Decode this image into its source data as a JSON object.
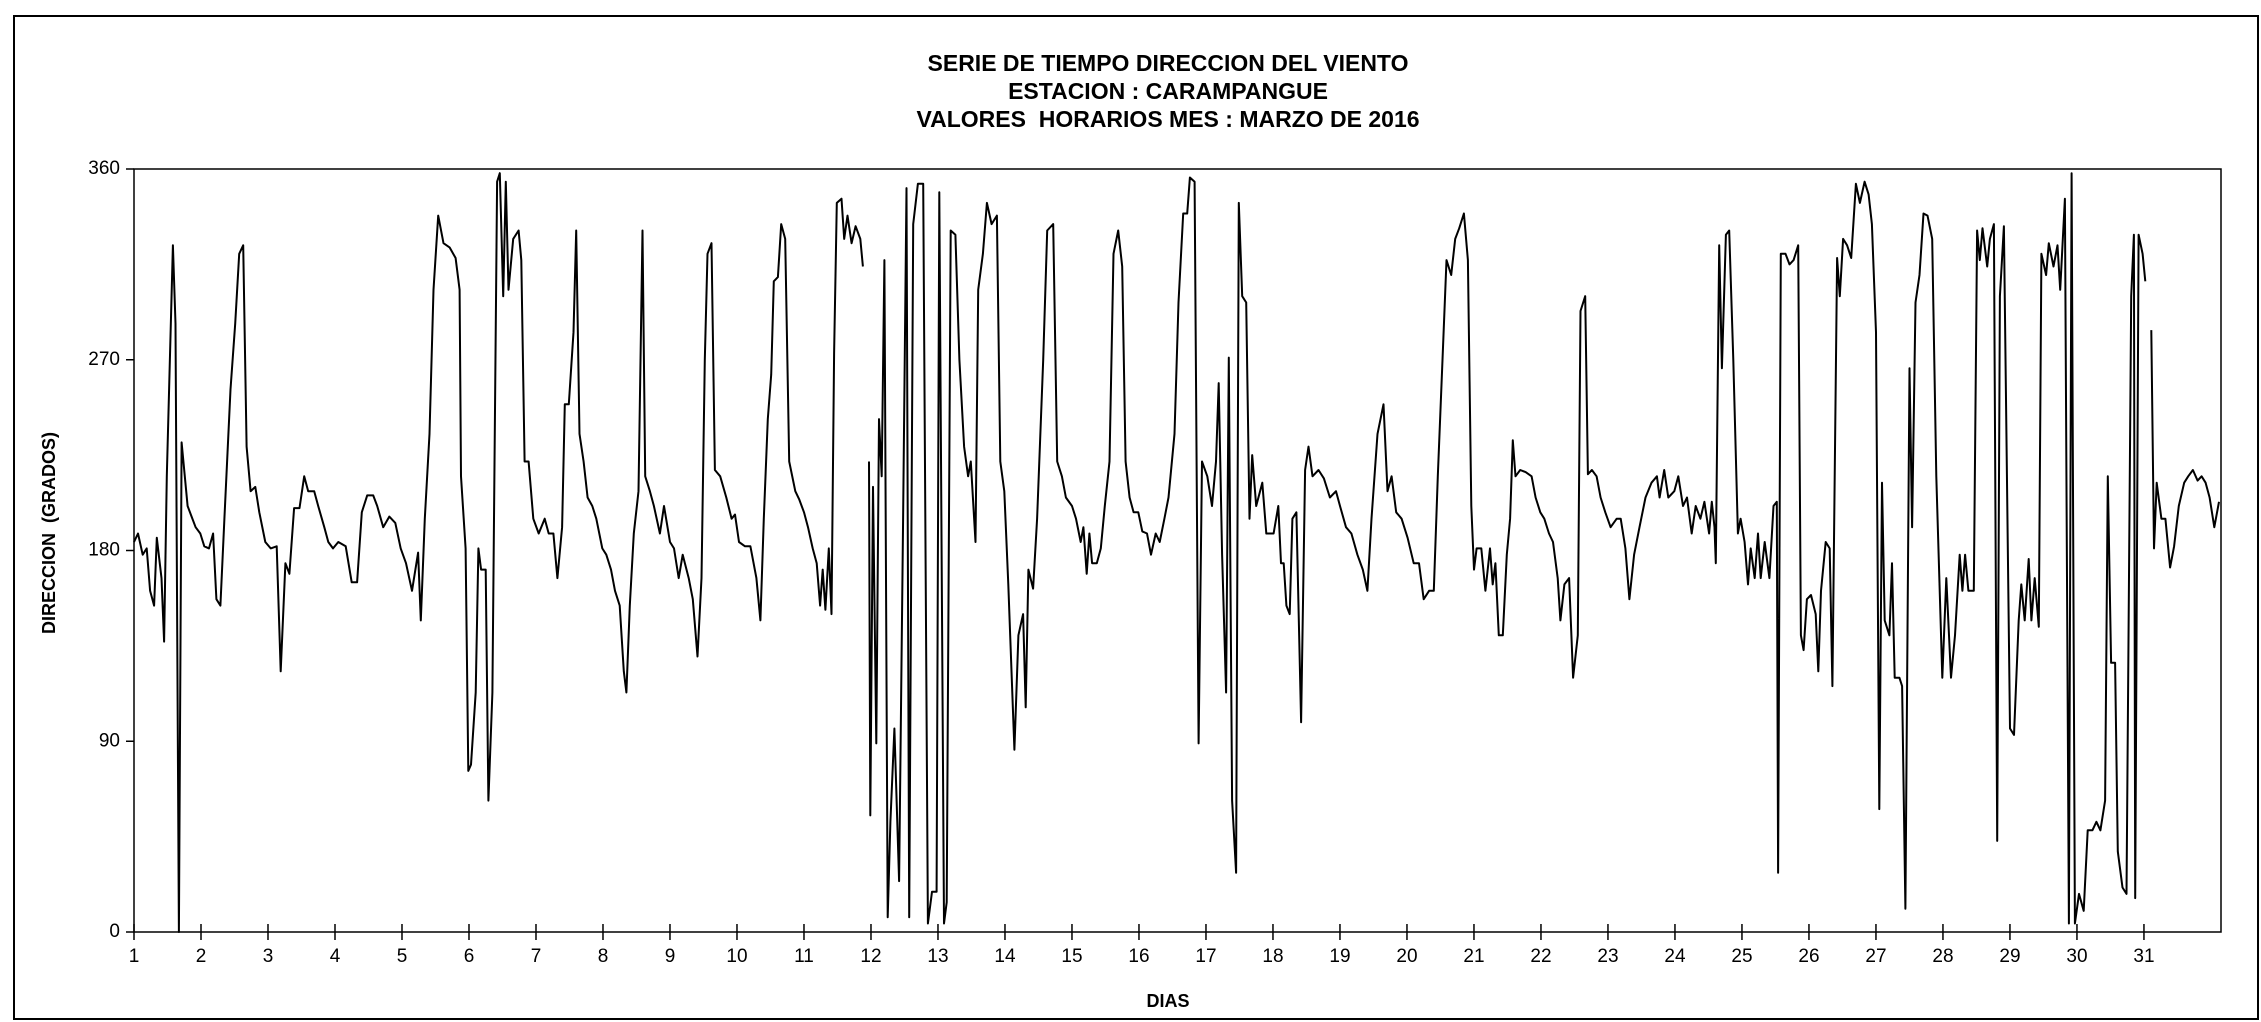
{
  "chart_data": {
    "type": "line",
    "title": [
      "SERIE DE TIEMPO DIRECCION DEL VIENTO",
      "ESTACION : CARAMPANGUE",
      "VALORES  HORARIOS MES : MARZO DE 2016"
    ],
    "xlabel": "DIAS",
    "ylabel": "DIRECCION  (GRADOS)",
    "color": "#000000",
    "xlim": [
      1,
      32.15
    ],
    "ylim": [
      0,
      360
    ],
    "xticks": [
      1,
      2,
      3,
      4,
      5,
      6,
      7,
      8,
      9,
      10,
      11,
      12,
      13,
      14,
      15,
      16,
      17,
      18,
      19,
      20,
      21,
      22,
      23,
      24,
      25,
      26,
      27,
      28,
      29,
      30,
      31
    ],
    "yticks": [
      0,
      90,
      180,
      270,
      360
    ],
    "x": [
      1.0,
      1.06,
      1.13,
      1.19,
      1.24,
      1.3,
      1.34,
      1.41,
      1.45,
      1.49,
      1.58,
      1.62,
      1.67,
      1.71,
      1.8,
      1.86,
      1.92,
      1.99,
      2.05,
      2.12,
      2.18,
      2.23,
      2.29,
      2.35,
      2.44,
      2.51,
      2.57,
      2.63,
      2.68,
      2.74,
      2.81,
      2.87,
      2.96,
      3.04,
      3.13,
      3.19,
      3.26,
      3.32,
      3.39,
      3.47,
      3.54,
      3.6,
      3.69,
      3.75,
      3.84,
      3.9,
      3.97,
      4.05,
      4.16,
      4.25,
      4.33,
      4.4,
      4.48,
      4.57,
      4.63,
      4.72,
      4.81,
      4.9,
      4.98,
      5.06,
      5.15,
      5.24,
      5.28,
      5.34,
      5.41,
      5.47,
      5.54,
      5.62,
      5.71,
      5.8,
      5.86,
      5.88,
      5.95,
      5.99,
      6.03,
      6.1,
      6.14,
      6.18,
      6.25,
      6.29,
      6.35,
      6.42,
      6.46,
      6.51,
      6.55,
      6.59,
      6.66,
      6.74,
      6.78,
      6.83,
      6.89,
      6.96,
      7.04,
      7.13,
      7.19,
      7.26,
      7.32,
      7.39,
      7.43,
      7.49,
      7.56,
      7.6,
      7.65,
      7.71,
      7.77,
      7.84,
      7.9,
      7.99,
      8.05,
      8.12,
      8.18,
      8.25,
      8.31,
      8.35,
      8.4,
      8.46,
      8.53,
      8.59,
      8.63,
      8.7,
      8.76,
      8.85,
      8.91,
      9.0,
      9.06,
      9.13,
      9.19,
      9.28,
      9.34,
      9.41,
      9.47,
      9.52,
      9.56,
      9.62,
      9.67,
      9.75,
      9.84,
      9.92,
      9.97,
      10.03,
      10.12,
      10.2,
      10.29,
      10.35,
      10.4,
      10.46,
      10.51,
      10.55,
      10.61,
      10.66,
      10.72,
      10.78,
      10.87,
      10.93,
      11.0,
      11.06,
      11.13,
      11.19,
      11.24,
      11.28,
      11.32,
      11.37,
      11.41,
      11.45,
      11.49,
      11.56,
      11.6,
      11.65,
      11.71,
      11.77,
      11.84,
      11.88,
      11.93,
      11.97,
      11.99,
      12.03,
      12.08,
      12.12,
      12.16,
      12.2,
      12.25,
      12.29,
      12.35,
      12.42,
      12.48,
      12.53,
      12.57,
      12.63,
      12.7,
      12.78,
      12.85,
      12.91,
      12.98,
      13.02,
      13.09,
      13.13,
      13.19,
      13.26,
      13.32,
      13.39,
      13.45,
      13.49,
      13.56,
      13.6,
      13.67,
      13.73,
      13.8,
      13.88,
      13.93,
      13.99,
      14.05,
      14.14,
      14.2,
      14.27,
      14.31,
      14.35,
      14.42,
      14.48,
      14.57,
      14.63,
      14.72,
      14.78,
      14.85,
      14.91,
      15.0,
      15.06,
      15.13,
      15.17,
      15.22,
      15.26,
      15.3,
      15.37,
      15.43,
      15.49,
      15.56,
      15.62,
      15.69,
      15.75,
      15.8,
      15.86,
      15.92,
      15.99,
      16.05,
      16.12,
      16.18,
      16.25,
      16.31,
      16.38,
      16.44,
      16.53,
      16.59,
      16.66,
      16.72,
      16.76,
      16.83,
      16.89,
      16.94,
      17.02,
      17.09,
      17.15,
      17.19,
      17.24,
      17.3,
      17.34,
      17.39,
      17.45,
      17.49,
      17.54,
      17.6,
      17.65,
      17.69,
      17.75,
      17.84,
      17.9,
      18.01,
      18.08,
      18.12,
      18.16,
      18.2,
      18.25,
      18.29,
      18.35,
      18.42,
      18.48,
      18.53,
      18.59,
      18.68,
      18.76,
      18.85,
      18.94,
      19.0,
      19.09,
      19.17,
      19.26,
      19.34,
      19.41,
      19.47,
      19.56,
      19.65,
      19.71,
      19.77,
      19.84,
      19.92,
      20.01,
      20.1,
      20.18,
      20.25,
      20.33,
      20.4,
      20.46,
      20.53,
      20.59,
      20.66,
      20.72,
      20.78,
      20.85,
      20.91,
      20.96,
      21.0,
      21.04,
      21.11,
      21.17,
      21.24,
      21.28,
      21.32,
      21.37,
      21.43,
      21.49,
      21.54,
      21.58,
      21.62,
      21.69,
      21.77,
      21.86,
      21.92,
      21.99,
      22.05,
      22.12,
      22.18,
      22.25,
      22.29,
      22.35,
      22.42,
      22.48,
      22.55,
      22.59,
      22.66,
      22.7,
      22.76,
      22.83,
      22.89,
      22.96,
      23.04,
      23.13,
      23.19,
      23.26,
      23.32,
      23.39,
      23.47,
      23.56,
      23.65,
      23.73,
      23.77,
      23.84,
      23.9,
      23.99,
      24.05,
      24.12,
      24.18,
      24.25,
      24.31,
      24.38,
      24.44,
      24.51,
      24.55,
      24.59,
      24.61,
      24.66,
      24.7,
      24.76,
      24.81,
      24.87,
      24.94,
      24.98,
      25.04,
      25.09,
      25.13,
      25.19,
      25.24,
      25.28,
      25.34,
      25.41,
      25.47,
      25.52,
      25.54,
      25.58,
      25.65,
      25.71,
      25.77,
      25.84,
      25.88,
      25.92,
      25.97,
      26.03,
      26.1,
      26.14,
      26.18,
      26.25,
      26.31,
      26.35,
      26.42,
      26.46,
      26.51,
      26.57,
      26.63,
      26.7,
      26.76,
      26.83,
      26.89,
      26.94,
      27.0,
      27.05,
      27.09,
      27.13,
      27.2,
      27.24,
      27.28,
      27.35,
      27.39,
      27.44,
      27.5,
      27.54,
      27.59,
      27.65,
      27.71,
      27.77,
      27.84,
      27.9,
      27.99,
      28.05,
      28.12,
      28.18,
      28.25,
      28.29,
      28.33,
      28.38,
      28.42,
      28.46,
      28.51,
      28.55,
      28.59,
      28.66,
      28.7,
      28.76,
      28.81,
      28.85,
      28.91,
      29.0,
      29.06,
      29.13,
      29.17,
      29.22,
      29.28,
      29.32,
      29.37,
      29.43,
      29.47,
      29.54,
      29.58,
      29.65,
      29.71,
      29.75,
      29.82,
      29.88,
      29.92,
      29.97,
      30.03,
      30.1,
      30.16,
      30.23,
      30.29,
      30.35,
      30.42,
      30.46,
      30.51,
      30.57,
      30.61,
      30.68,
      30.74,
      30.81,
      30.85,
      30.87,
      30.92,
      30.98,
      31.02,
      31.06,
      31.11,
      31.15,
      31.19,
      31.26,
      31.32,
      31.39,
      31.45,
      31.52,
      31.6,
      31.66,
      31.73,
      31.8,
      31.86,
      31.92,
      31.98,
      32.05,
      32.12
    ],
    "values": [
      184,
      188,
      178,
      181,
      161,
      154,
      186,
      167,
      137,
      215,
      324,
      287,
      0,
      231,
      201,
      196,
      191,
      188,
      182,
      181,
      188,
      157,
      154,
      195,
      256,
      287,
      320,
      324,
      229,
      208,
      210,
      198,
      184,
      181,
      182,
      123,
      174,
      169,
      200,
      200,
      215,
      208,
      208,
      201,
      191,
      184,
      181,
      184,
      182,
      165,
      165,
      198,
      206,
      206,
      201,
      191,
      196,
      193,
      181,
      174,
      161,
      179,
      147,
      195,
      235,
      303,
      338,
      325,
      323,
      318,
      303,
      215,
      181,
      76,
      79,
      113,
      181,
      171,
      171,
      62,
      113,
      354,
      358,
      300,
      354,
      303,
      327,
      331,
      317,
      222,
      222,
      195,
      188,
      195,
      188,
      188,
      167,
      191,
      249,
      249,
      283,
      331,
      235,
      222,
      205,
      201,
      195,
      181,
      178,
      171,
      161,
      154,
      123,
      113,
      154,
      188,
      208,
      331,
      215,
      208,
      201,
      188,
      201,
      184,
      181,
      167,
      178,
      167,
      157,
      130,
      167,
      270,
      320,
      325,
      218,
      215,
      205,
      195,
      197,
      184,
      182,
      182,
      167,
      147,
      195,
      242,
      263,
      307,
      309,
      334,
      327,
      222,
      208,
      204,
      198,
      191,
      181,
      174,
      154,
      171,
      152,
      181,
      150,
      273,
      344,
      346,
      327,
      338,
      325,
      333,
      327,
      314,
      null,
      222,
      55,
      210,
      89,
      242,
      215,
      317,
      7,
      52,
      96,
      24,
      195,
      351,
      7,
      334,
      353,
      353,
      4,
      19,
      19,
      349,
      4,
      14,
      331,
      329,
      270,
      229,
      215,
      222,
      184,
      303,
      320,
      344,
      334,
      338,
      222,
      208,
      164,
      86,
      140,
      150,
      106,
      171,
      162,
      195,
      270,
      331,
      334,
      222,
      215,
      205,
      201,
      195,
      184,
      191,
      169,
      188,
      174,
      174,
      181,
      201,
      222,
      320,
      331,
      314,
      222,
      205,
      198,
      198,
      189,
      188,
      178,
      188,
      184,
      195,
      205,
      235,
      297,
      339,
      339,
      356,
      354,
      89,
      222,
      215,
      201,
      222,
      259,
      178,
      113,
      271,
      62,
      28,
      344,
      300,
      297,
      195,
      225,
      201,
      212,
      188,
      188,
      201,
      174,
      174,
      154,
      150,
      195,
      198,
      99,
      218,
      229,
      215,
      218,
      214,
      205,
      208,
      201,
      191,
      188,
      178,
      171,
      161,
      195,
      235,
      249,
      208,
      215,
      198,
      195,
      186,
      174,
      174,
      157,
      161,
      161,
      215,
      270,
      317,
      310,
      327,
      332,
      339,
      317,
      201,
      171,
      181,
      181,
      161,
      181,
      164,
      174,
      140,
      140,
      178,
      195,
      232,
      215,
      218,
      217,
      215,
      205,
      198,
      195,
      188,
      184,
      167,
      147,
      164,
      167,
      120,
      140,
      293,
      300,
      216,
      218,
      215,
      205,
      198,
      191,
      195,
      195,
      181,
      157,
      178,
      191,
      205,
      212,
      215,
      205,
      218,
      205,
      208,
      215,
      201,
      205,
      188,
      201,
      195,
      203,
      188,
      203,
      191,
      174,
      324,
      266,
      329,
      331,
      270,
      188,
      195,
      184,
      164,
      181,
      167,
      188,
      167,
      184,
      167,
      201,
      203,
      28,
      320,
      320,
      315,
      317,
      324,
      140,
      133,
      157,
      159,
      150,
      123,
      161,
      184,
      181,
      116,
      318,
      300,
      327,
      324,
      318,
      353,
      344,
      354,
      348,
      334,
      283,
      58,
      212,
      147,
      140,
      174,
      120,
      120,
      116,
      11,
      266,
      191,
      297,
      310,
      339,
      338,
      327,
      215,
      120,
      167,
      120,
      140,
      178,
      161,
      178,
      161,
      161,
      161,
      331,
      317,
      332,
      314,
      327,
      334,
      43,
      300,
      333,
      96,
      93,
      147,
      164,
      147,
      176,
      147,
      167,
      144,
      320,
      310,
      325,
      314,
      324,
      303,
      346,
      4,
      358,
      4,
      18,
      10,
      48,
      48,
      52,
      48,
      62,
      215,
      127,
      127,
      38,
      21,
      18,
      300,
      329,
      16,
      329,
      320,
      307,
      null,
      284,
      181,
      212,
      195,
      195,
      172,
      182,
      201,
      212,
      215,
      218,
      213,
      215,
      212,
      205,
      191,
      203
    ]
  }
}
